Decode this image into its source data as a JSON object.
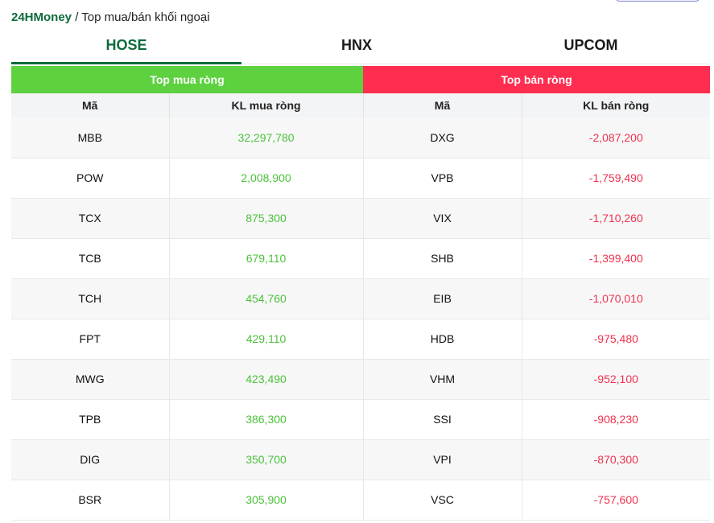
{
  "breadcrumb": {
    "brand": "24HMoney",
    "separator": " / ",
    "page": "Top mua/bán khối ngoại"
  },
  "tabs": [
    {
      "label": "HOSE",
      "active": true
    },
    {
      "label": "HNX",
      "active": false
    },
    {
      "label": "UPCOM",
      "active": false
    }
  ],
  "table": {
    "group_headers": {
      "buy": "Top mua ròng",
      "sell": "Top bán ròng"
    },
    "columns": {
      "buy_symbol": "Mã",
      "buy_volume": "KL mua ròng",
      "sell_symbol": "Mã",
      "sell_volume": "KL bán ròng"
    },
    "rows": [
      {
        "buy_symbol": "MBB",
        "buy_volume": "32,297,780",
        "sell_symbol": "DXG",
        "sell_volume": "-2,087,200"
      },
      {
        "buy_symbol": "POW",
        "buy_volume": "2,008,900",
        "sell_symbol": "VPB",
        "sell_volume": "-1,759,490"
      },
      {
        "buy_symbol": "TCX",
        "buy_volume": "875,300",
        "sell_symbol": "VIX",
        "sell_volume": "-1,710,260"
      },
      {
        "buy_symbol": "TCB",
        "buy_volume": "679,110",
        "sell_symbol": "SHB",
        "sell_volume": "-1,399,400"
      },
      {
        "buy_symbol": "TCH",
        "buy_volume": "454,760",
        "sell_symbol": "EIB",
        "sell_volume": "-1,070,010"
      },
      {
        "buy_symbol": "FPT",
        "buy_volume": "429,110",
        "sell_symbol": "HDB",
        "sell_volume": "-975,480"
      },
      {
        "buy_symbol": "MWG",
        "buy_volume": "423,490",
        "sell_symbol": "VHM",
        "sell_volume": "-952,100"
      },
      {
        "buy_symbol": "TPB",
        "buy_volume": "386,300",
        "sell_symbol": "SSI",
        "sell_volume": "-908,230"
      },
      {
        "buy_symbol": "DIG",
        "buy_volume": "350,700",
        "sell_symbol": "VPI",
        "sell_volume": "-870,300"
      },
      {
        "buy_symbol": "BSR",
        "buy_volume": "305,900",
        "sell_symbol": "VSC",
        "sell_volume": "-757,600"
      }
    ]
  },
  "colors": {
    "brand": "#0d6b3b",
    "buy": "#5dd13f",
    "sell": "#ff2d4f",
    "buy_text": "#4cc23a",
    "sell_text": "#f0324f"
  }
}
